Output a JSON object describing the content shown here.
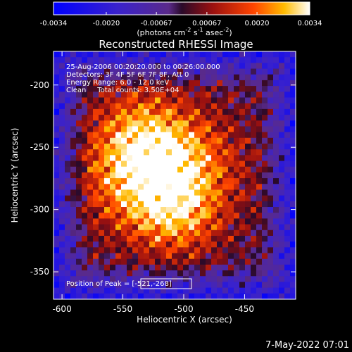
{
  "colorbar": {
    "tick_labels": [
      "-0.0034",
      "-0.0020",
      "-0.00067",
      "0.00067",
      "0.0020",
      "0.0034"
    ],
    "tick_values": [
      -0.0034,
      -0.002,
      -0.00067,
      0.00067,
      0.002,
      0.0034
    ],
    "range": [
      -0.0034,
      0.0034
    ],
    "units_main": "(photons cm",
    "units_exp1": "-2",
    "units_mid1": " s",
    "units_exp2": "-1",
    "units_mid2": " asec",
    "units_exp3": "-2",
    "units_end": ")"
  },
  "chart_data": {
    "type": "heatmap",
    "title": "Reconstructed RHESSI Image",
    "xlabel": "Heliocentric X (arcsec)",
    "ylabel": "Heliocentric Y (arcsec)",
    "xlim": [
      -607,
      -408
    ],
    "ylim": [
      -372,
      -173
    ],
    "x_ticks": [
      -600,
      -550,
      -500,
      -450
    ],
    "y_ticks": [
      -200,
      -250,
      -300,
      -350
    ],
    "value_range": [
      -0.0034,
      0.0034
    ],
    "peak_position": [
      -521,
      -268
    ],
    "grid": false
  },
  "info": {
    "line1": "25-Aug-2006 00:20:20.000 to 00:26:00.000",
    "line2": "Detectors: 3F 4F 5F 6F 7F 8F, Att 0",
    "line3": "Energy Range: 6.0 - 12.0 keV",
    "line4": "Clean     Total counts: 3.50E+04",
    "peak_label": "Position of Peak = ",
    "peak_value": "[-521,-268]"
  },
  "footer": {
    "date": "7-May-2022 07:01"
  }
}
